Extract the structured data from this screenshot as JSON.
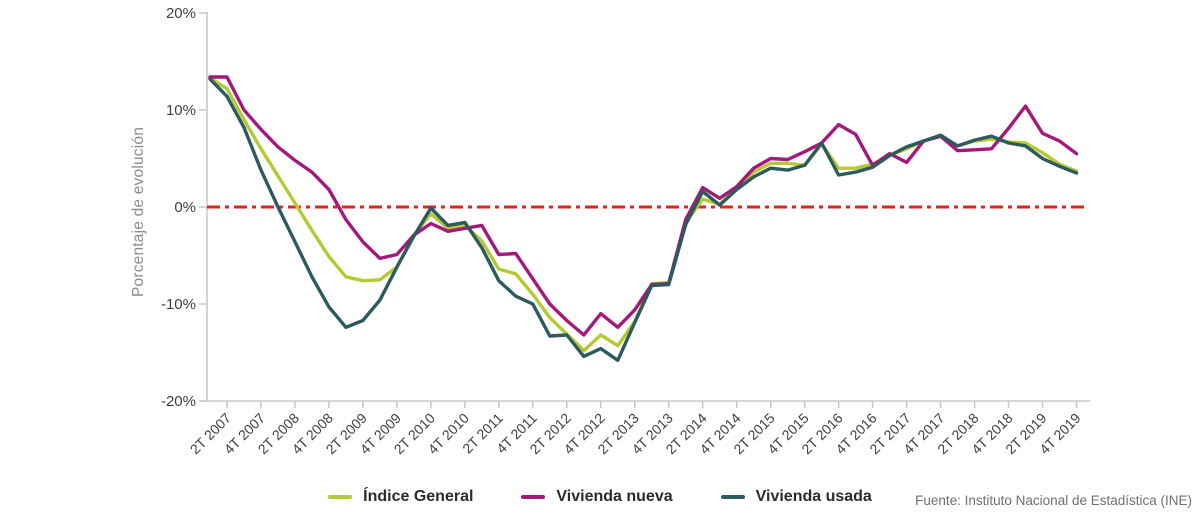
{
  "footer": {
    "source": "Fuente: Instituto Nacional de Estadística (INE)"
  },
  "chart_data": {
    "type": "line",
    "title": "",
    "xlabel": "",
    "ylabel": "Porcentaje de evolución",
    "ylim": [
      -20,
      20
    ],
    "ytick_values": [
      20,
      10,
      0,
      -10,
      -20
    ],
    "ytick_labels": [
      "20%",
      "10%",
      "0%",
      "-10%",
      "-20%"
    ],
    "grid": false,
    "legend_position": "bottom",
    "zero_line": {
      "value": 0,
      "color": "#e02421",
      "style": "dash-dot"
    },
    "axis_color": "#c9c9c9",
    "tick_label_color": "#3f3f3f",
    "x_quarters": [
      "1T 2007",
      "2T 2007",
      "3T 2007",
      "4T 2007",
      "1T 2008",
      "2T 2008",
      "3T 2008",
      "4T 2008",
      "1T 2009",
      "2T 2009",
      "3T 2009",
      "4T 2009",
      "1T 2010",
      "2T 2010",
      "3T 2010",
      "4T 2010",
      "1T 2011",
      "2T 2011",
      "3T 2011",
      "4T 2011",
      "1T 2012",
      "2T 2012",
      "3T 2012",
      "4T 2012",
      "1T 2013",
      "2T 2013",
      "3T 2013",
      "4T 2013",
      "1T 2014",
      "2T 2014",
      "3T 2014",
      "4T 2014",
      "1T 2015",
      "2T 2015",
      "3T 2015",
      "4T 2015",
      "1T 2016",
      "2T 2016",
      "3T 2016",
      "4T 2016",
      "1T 2017",
      "2T 2017",
      "3T 2017",
      "4T 2017",
      "1T 2018",
      "2T 2018",
      "3T 2018",
      "4T 2018",
      "1T 2019",
      "2T 2019",
      "3T 2019",
      "4T 2019"
    ],
    "xtick_shown_labels": [
      "2T 2007",
      "4T 2007",
      "2T 2008",
      "4T 2008",
      "2T 2009",
      "4T 2009",
      "2T 2010",
      "4T 2010",
      "2T 2011",
      "4T 2011",
      "2T 2012",
      "4T 2012",
      "2T 2013",
      "4T 2013",
      "2T 2014",
      "4T 2014",
      "2T 2015",
      "4T 2015",
      "2T 2016",
      "4T 2016",
      "2T 2017",
      "4T 2017",
      "2T 2018",
      "4T 2018",
      "2T 2019",
      "4T 2019"
    ],
    "series": [
      {
        "name": "Índice General",
        "color": "#b5c934",
        "values": [
          13.3,
          12.2,
          9.0,
          6.0,
          3.2,
          0.4,
          -2.4,
          -5.1,
          -7.2,
          -7.6,
          -7.5,
          -6.2,
          -2.9,
          -0.7,
          -2.2,
          -1.9,
          -3.5,
          -6.4,
          -6.9,
          -9.0,
          -11.4,
          -13.1,
          -14.8,
          -13.2,
          -14.3,
          -11.8,
          -7.9,
          -7.8,
          -1.6,
          0.8,
          0.3,
          1.9,
          3.6,
          4.5,
          4.5,
          4.3,
          6.5,
          4.0,
          4.0,
          4.4,
          5.3,
          6.0,
          6.8,
          7.3,
          6.3,
          6.8,
          7.0,
          6.7,
          6.6,
          5.6,
          4.4,
          3.7
        ]
      },
      {
        "name": "Vivienda nueva",
        "color": "#a4187c",
        "values": [
          13.4,
          13.4,
          10.0,
          8.0,
          6.2,
          4.8,
          3.6,
          1.8,
          -1.3,
          -3.6,
          -5.3,
          -4.9,
          -2.9,
          -1.7,
          -2.5,
          -2.2,
          -1.9,
          -4.9,
          -4.8,
          -7.4,
          -10.0,
          -11.7,
          -13.2,
          -11.0,
          -12.4,
          -10.6,
          -8.0,
          -7.9,
          -1.3,
          2.0,
          0.9,
          2.1,
          4.0,
          5.0,
          4.9,
          5.7,
          6.6,
          8.5,
          7.5,
          4.3,
          5.5,
          4.6,
          6.8,
          7.3,
          5.8,
          5.9,
          6.0,
          8.1,
          10.4,
          7.6,
          6.8,
          5.5
        ]
      },
      {
        "name": "Vivienda usada",
        "color": "#2c5a5e",
        "values": [
          13.2,
          11.4,
          8.2,
          3.8,
          0.0,
          -3.6,
          -7.2,
          -10.3,
          -12.4,
          -11.7,
          -9.6,
          -6.2,
          -3.0,
          -0.1,
          -1.9,
          -1.6,
          -4.2,
          -7.6,
          -9.2,
          -10.0,
          -13.3,
          -13.2,
          -15.4,
          -14.6,
          -15.8,
          -11.9,
          -8.1,
          -8.0,
          -1.8,
          1.6,
          0.2,
          1.8,
          3.1,
          4.0,
          3.8,
          4.3,
          6.6,
          3.3,
          3.6,
          4.1,
          5.3,
          6.2,
          6.8,
          7.4,
          6.3,
          6.9,
          7.3,
          6.6,
          6.3,
          5.0,
          4.2,
          3.5
        ]
      }
    ]
  }
}
